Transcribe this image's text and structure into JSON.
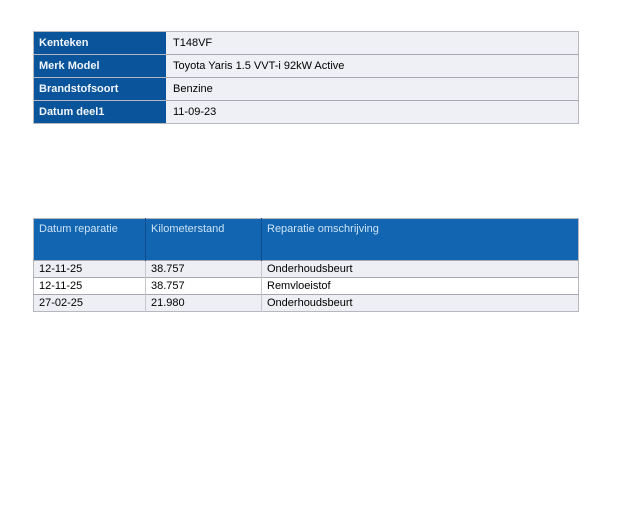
{
  "vehicle_info": {
    "rows": [
      {
        "label": "Kenteken",
        "value": "T148VF"
      },
      {
        "label": "Merk Model",
        "value": "Toyota Yaris 1.5 VVT-i 92kW Active"
      },
      {
        "label": "Brandstofsoort",
        "value": "Benzine"
      },
      {
        "label": "Datum deel1",
        "value": "11-09-23"
      }
    ]
  },
  "service_table": {
    "headers": [
      "Datum reparatie",
      "Kilometerstand",
      "Reparatie omschrijving"
    ],
    "rows": [
      {
        "date": "12-11-25",
        "odometer": "38.757",
        "description": "Onderhoudsbeurt"
      },
      {
        "date": "12-11-25",
        "odometer": "38.757",
        "description": "Remvloeistof"
      },
      {
        "date": "27-02-25",
        "odometer": "21.980",
        "description": "Onderhoudsbeurt"
      }
    ]
  },
  "colors": {
    "label_cell_blue": "#09549b",
    "header_blue": "#1266b1",
    "header_text": "#cde2f5",
    "row_shaded": "#eeeff4",
    "row_white": "#ffffff",
    "border_gray": "#a8a8b0"
  }
}
